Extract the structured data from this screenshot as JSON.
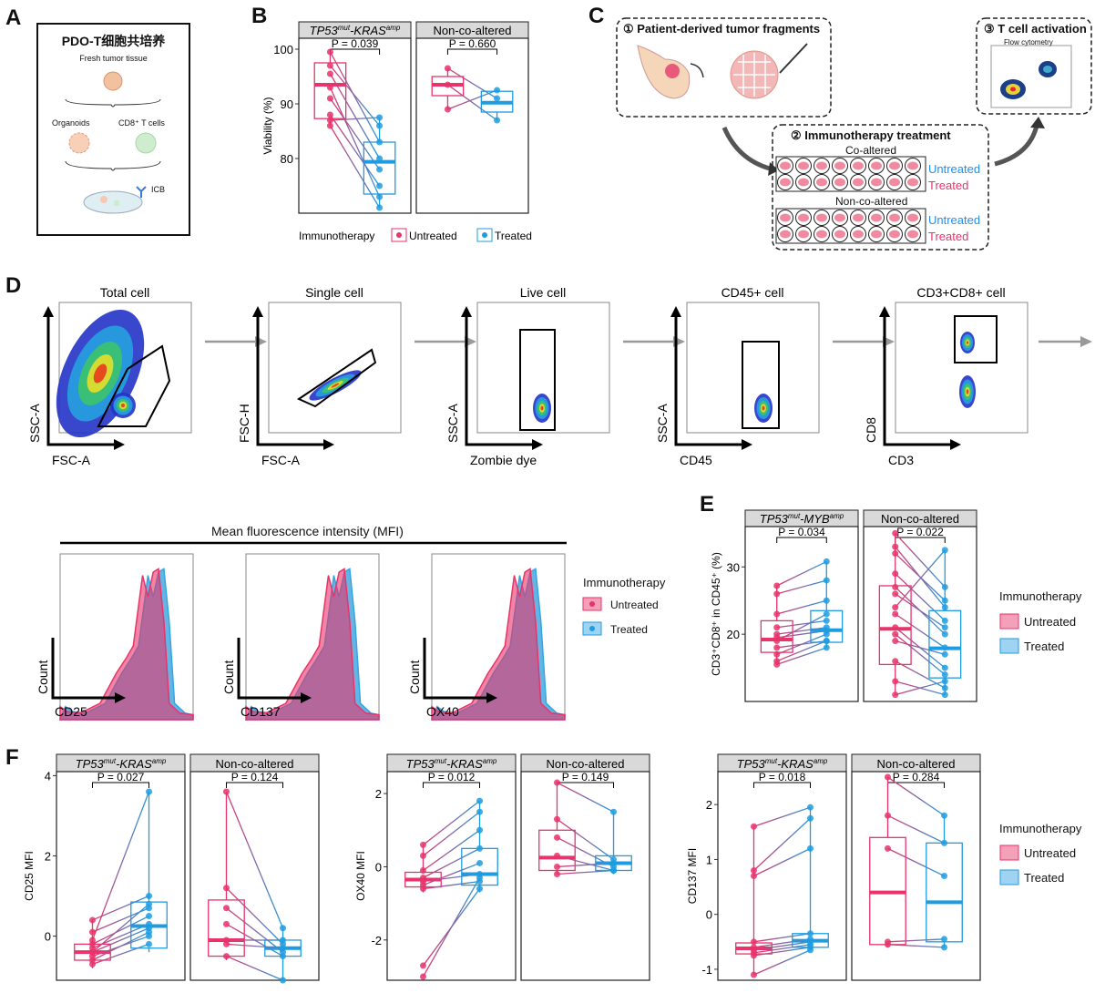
{
  "panel_labels": {
    "a": "A",
    "b": "B",
    "c": "C",
    "d": "D",
    "e": "E",
    "f": "F"
  },
  "panelA": {
    "title": "PDO-T细胞共培养",
    "fresh": "Fresh tumor tissue",
    "organoids": "Organoids",
    "tcells": "CD8⁺ T cells",
    "icb": "ICB"
  },
  "panelC": {
    "step1": "① Patient-derived tumor fragments",
    "step2": "② Immunotherapy treatment",
    "step3": "③ T cell activation",
    "flow": "Flow cytometry",
    "co": "Co-altered",
    "nonco": "Non-co-altered",
    "untreated": "Untreated",
    "treated": "Treated"
  },
  "gating": {
    "titles": [
      "Total cell",
      "Single cell",
      "Live cell",
      "CD45+ cell",
      "CD3+CD8+ cell"
    ],
    "xlabels": [
      "FSC-A",
      "FSC-A",
      "Zombie dye",
      "CD45",
      "CD3"
    ],
    "ylabels": [
      "SSC-A",
      "FSC-H",
      "SSC-A",
      "SSC-A",
      "CD8"
    ]
  },
  "mfi": {
    "title": "Mean fluorescence intensity (MFI)",
    "xlabels": [
      "CD25",
      "CD137",
      "OX40"
    ],
    "ylabel": "Count",
    "legend_title": "Immunotherapy",
    "legend": [
      "Untreated",
      "Treated"
    ]
  },
  "colors": {
    "untreated": "#e8336b",
    "treated": "#1f9ce0",
    "line": "#8a55b5"
  },
  "legend": {
    "title": "Immunotherapy",
    "untreated": "Untreated",
    "treated": "Treated"
  },
  "chart_data": [
    {
      "id": "B",
      "type": "box",
      "ylabel": "Viability (%)",
      "ylim": [
        70,
        102
      ],
      "yticks": [
        80,
        90,
        100
      ],
      "facets": [
        {
          "strip_italic": "TP53",
          "strip_sup1": "mut",
          "strip_mid": "-KRAS",
          "strip_sup2": "amp",
          "pvalue": "P = 0.039",
          "pairs": [
            [
              99.5,
              83
            ],
            [
              97,
              86
            ],
            [
              95.5,
              80
            ],
            [
              93,
              73
            ],
            [
              91,
              78
            ],
            [
              88,
              75
            ],
            [
              87,
              87.5
            ],
            [
              86,
              71
            ]
          ],
          "box_u": {
            "q1": 87.3,
            "med": 93.5,
            "q3": 97.5,
            "lo": 86,
            "hi": 99.5
          },
          "box_t": {
            "q1": 73.5,
            "med": 79.4,
            "q3": 83,
            "lo": 71,
            "hi": 87.5
          }
        },
        {
          "strip_plain": "Non-co-altered",
          "pvalue": "P = 0.660",
          "pairs": [
            [
              96.5,
              91
            ],
            [
              93.5,
              87
            ],
            [
              89,
              92.5
            ]
          ],
          "box_u": {
            "q1": 91.5,
            "med": 93.5,
            "q3": 95,
            "lo": 89,
            "hi": 96.5
          },
          "box_t": {
            "q1": 88.5,
            "med": 90.2,
            "q3": 92.3,
            "lo": 87,
            "hi": 92.5
          }
        }
      ],
      "xaxis_label": "Immunotherapy",
      "legend": [
        "Untreated",
        "Treated"
      ]
    },
    {
      "id": "E",
      "type": "box",
      "ylabel": "CD3⁺CD8⁺ in CD45⁺ (%)",
      "ylim": [
        10,
        36
      ],
      "yticks": [
        20,
        30
      ],
      "facets": [
        {
          "strip_italic": "TP53",
          "strip_sup1": "mut",
          "strip_mid": "-MYB",
          "strip_sup2": "amp",
          "pvalue": "P = 0.034",
          "pairs": [
            [
              27.2,
              30.8
            ],
            [
              26,
              28
            ],
            [
              23,
              25
            ],
            [
              21,
              22
            ],
            [
              20,
              21
            ],
            [
              19.5,
              20.5
            ],
            [
              19,
              23
            ],
            [
              18,
              19
            ],
            [
              17,
              20
            ],
            [
              16,
              19
            ],
            [
              15.5,
              18
            ]
          ],
          "box_u": {
            "q1": 17.3,
            "med": 19.2,
            "q3": 22,
            "lo": 15.5,
            "hi": 27.2
          },
          "box_t": {
            "q1": 18.8,
            "med": 20.6,
            "q3": 23.5,
            "lo": 18,
            "hi": 30.8
          }
        },
        {
          "strip_plain": "Non-co-altered",
          "pvalue": "P = 0.022",
          "pairs": [
            [
              35,
              27
            ],
            [
              33,
              24
            ],
            [
              32,
              25
            ],
            [
              29,
              22
            ],
            [
              27,
              20
            ],
            [
              26,
              21
            ],
            [
              24,
              32.5
            ],
            [
              23,
              18
            ],
            [
              21,
              15
            ],
            [
              20,
              14
            ],
            [
              19,
              17
            ],
            [
              16,
              12
            ],
            [
              13,
              11
            ],
            [
              11,
              13
            ]
          ],
          "box_u": {
            "q1": 15.5,
            "med": 20.8,
            "q3": 27.2,
            "lo": 11,
            "hi": 35
          },
          "box_t": {
            "q1": 13.5,
            "med": 17.9,
            "q3": 23.5,
            "lo": 11,
            "hi": 32.5
          }
        }
      ]
    },
    {
      "id": "F1",
      "type": "box",
      "ylabel": "CD25 MFI",
      "ylim": [
        -1.1,
        4.1
      ],
      "yticks": [
        0,
        2,
        4
      ],
      "facets": [
        {
          "strip_italic": "TP53",
          "strip_sup1": "mut",
          "strip_mid": "-KRAS",
          "strip_sup2": "amp",
          "pvalue": "P = 0.027",
          "pairs": [
            [
              -0.1,
              3.6
            ],
            [
              0.4,
              1
            ],
            [
              0.1,
              0.7
            ],
            [
              -0.2,
              0.5
            ],
            [
              -0.3,
              0.3
            ],
            [
              -0.4,
              0.2
            ],
            [
              -0.5,
              0
            ],
            [
              -0.6,
              0.1
            ],
            [
              -0.7,
              -0.2
            ],
            [
              -0.4,
              0.8
            ]
          ],
          "box_u": {
            "q1": -0.6,
            "med": -0.4,
            "q3": -0.2,
            "lo": -0.8,
            "hi": 0.4
          },
          "box_t": {
            "q1": -0.3,
            "med": 0.25,
            "q3": 0.85,
            "lo": -0.4,
            "hi": 3.6
          }
        },
        {
          "strip_plain": "Non-co-altered",
          "pvalue": "P = 0.124",
          "pairs": [
            [
              3.6,
              0.2
            ],
            [
              1.2,
              -0.2
            ],
            [
              0.7,
              -0.4
            ],
            [
              0.3,
              -0.5
            ],
            [
              -0.2,
              -0.3
            ],
            [
              -0.5,
              -1.1
            ],
            [
              -0.1,
              -0.1
            ]
          ],
          "box_u": {
            "q1": -0.5,
            "med": -0.1,
            "q3": 0.9,
            "lo": -0.6,
            "hi": 3.6
          },
          "box_t": {
            "q1": -0.5,
            "med": -0.3,
            "q3": -0.1,
            "lo": -1.1,
            "hi": 0.2
          }
        }
      ]
    },
    {
      "id": "F2",
      "type": "box",
      "ylabel": "OX40 MFI",
      "ylim": [
        -3.1,
        2.6
      ],
      "yticks": [
        -2,
        0,
        2
      ],
      "facets": [
        {
          "strip_italic": "TP53",
          "strip_sup1": "mut",
          "strip_mid": "-KRAS",
          "strip_sup2": "amp",
          "pvalue": "P = 0.012",
          "pairs": [
            [
              0.6,
              1.8
            ],
            [
              0.3,
              1.5
            ],
            [
              -0.1,
              1
            ],
            [
              -0.3,
              0.5
            ],
            [
              -0.4,
              -0.2
            ],
            [
              -0.5,
              0.1
            ],
            [
              -0.6,
              -0.4
            ],
            [
              -2.7,
              -0.6
            ],
            [
              -3.0,
              -0.3
            ]
          ],
          "box_u": {
            "q1": -0.55,
            "med": -0.35,
            "q3": -0.15,
            "lo": -0.7,
            "hi": 0.6
          },
          "box_t": {
            "q1": -0.5,
            "med": -0.2,
            "q3": 0.5,
            "lo": -0.7,
            "hi": 1.8
          }
        },
        {
          "strip_plain": "Non-co-altered",
          "pvalue": "P = 0.149",
          "pairs": [
            [
              2.3,
              1.5
            ],
            [
              1.3,
              0.2
            ],
            [
              0.8,
              0
            ],
            [
              0.3,
              -0.1
            ],
            [
              0,
              0.1
            ],
            [
              -0.2,
              -0.1
            ]
          ],
          "box_u": {
            "q1": -0.1,
            "med": 0.25,
            "q3": 1.0,
            "lo": -0.2,
            "hi": 2.3
          },
          "box_t": {
            "q1": -0.1,
            "med": 0.1,
            "q3": 0.3,
            "lo": -0.2,
            "hi": 1.5
          }
        }
      ]
    },
    {
      "id": "F3",
      "type": "box",
      "ylabel": "CD137 MFI",
      "ylim": [
        -1.2,
        2.6
      ],
      "yticks": [
        -1,
        0,
        1,
        2
      ],
      "facets": [
        {
          "strip_italic": "TP53",
          "strip_sup1": "mut",
          "strip_mid": "-KRAS",
          "strip_sup2": "amp",
          "pvalue": "P = 0.018",
          "pairs": [
            [
              1.6,
              1.95
            ],
            [
              0.8,
              1.75
            ],
            [
              0.7,
              1.2
            ],
            [
              -0.5,
              -0.35
            ],
            [
              -0.6,
              -0.45
            ],
            [
              -0.65,
              -0.5
            ],
            [
              -0.7,
              -0.55
            ],
            [
              -0.75,
              -0.6
            ],
            [
              -1.1,
              -0.65
            ]
          ],
          "box_u": {
            "q1": -0.72,
            "med": -0.62,
            "q3": -0.52,
            "lo": -1.1,
            "hi": 1.6
          },
          "box_t": {
            "q1": -0.6,
            "med": -0.48,
            "q3": -0.35,
            "lo": -0.65,
            "hi": 1.95
          }
        },
        {
          "strip_plain": "Non-co-altered",
          "pvalue": "P = 0.284",
          "pairs": [
            [
              2.5,
              1.8
            ],
            [
              1.8,
              1.3
            ],
            [
              1.2,
              0.7
            ],
            [
              -0.5,
              -0.45
            ],
            [
              -0.55,
              -0.6
            ]
          ],
          "box_u": {
            "q1": -0.55,
            "med": 0.4,
            "q3": 1.4,
            "lo": -0.6,
            "hi": 2.5
          },
          "box_t": {
            "q1": -0.5,
            "med": 0.22,
            "q3": 1.3,
            "lo": -0.6,
            "hi": 1.8
          }
        }
      ]
    }
  ]
}
